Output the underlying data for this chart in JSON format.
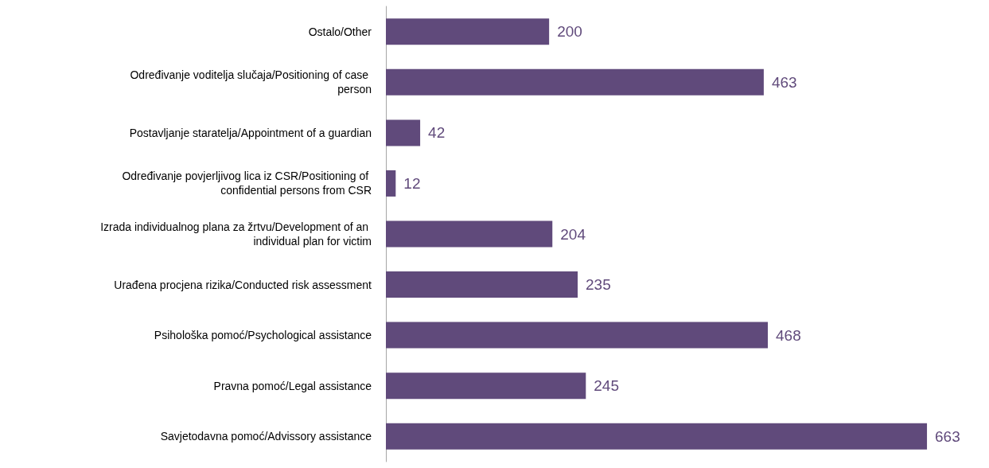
{
  "chart_data": {
    "type": "bar",
    "orientation": "horizontal",
    "data_labels": true,
    "categories": [
      "Ostalo/Other",
      "Određivanje voditelja slučaja/Positioning of case person",
      "Postavljanje staratelja/Appointment of a guardian",
      "Određivanje povjerljivog lica iz CSR/Positioning of confidential persons from CSR",
      "Izrada individualnog plana za žrtvu/Development of an individual plan for victim",
      "Urađena procjena rizika/Conducted risk assessment",
      "Psihološka pomoć/Psychological assistance",
      "Pravna pomoć/Legal assistance",
      "Savjetodavna pomoć/Advissory assistance"
    ],
    "series": [
      {
        "color": "#604a7b",
        "values": [
          200,
          463,
          42,
          12,
          204,
          235,
          468,
          245,
          663
        ]
      }
    ]
  }
}
